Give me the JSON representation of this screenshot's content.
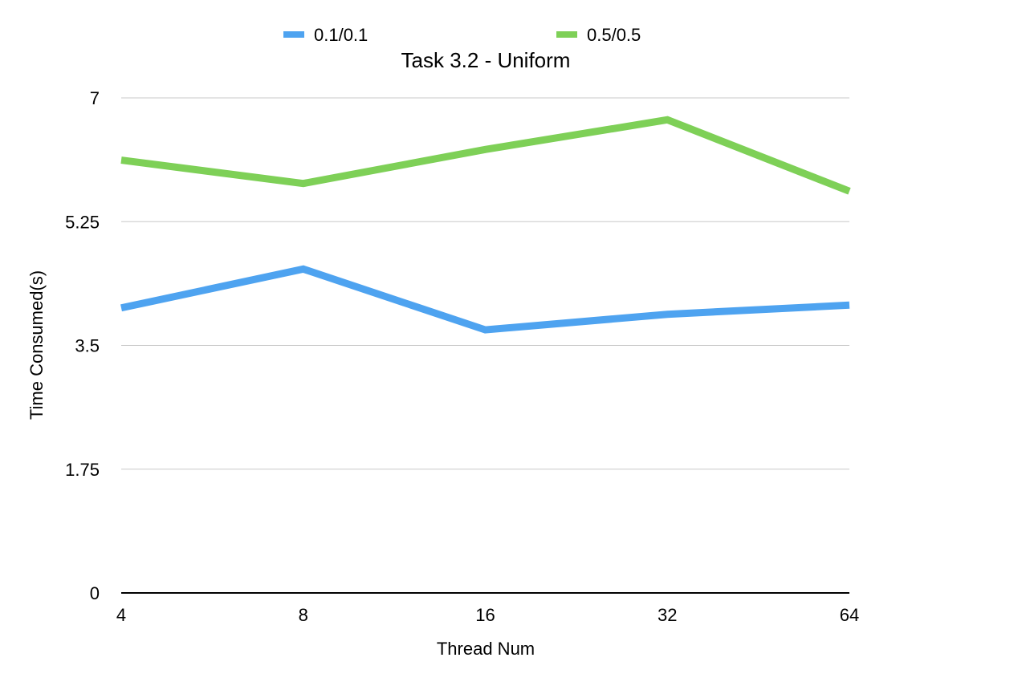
{
  "chart_data": {
    "type": "line",
    "title": "Task 3.2 - Uniform",
    "xlabel": "Thread Num",
    "ylabel": "Time Consumed(s)",
    "categories": [
      "4",
      "8",
      "16",
      "32",
      "64"
    ],
    "ylim": [
      0,
      7
    ],
    "yticks": [
      "0",
      "1.75",
      "3.5",
      "5.25",
      "7"
    ],
    "ytick_values": [
      0,
      1.75,
      3.5,
      5.25,
      7
    ],
    "grid": true,
    "legend_position": "top",
    "series": [
      {
        "name": "0.1/0.1",
        "color": "#4ea3f0",
        "values": [
          4.03,
          4.58,
          3.72,
          3.94,
          4.07
        ]
      },
      {
        "name": "0.5/0.5",
        "color": "#7ed057",
        "values": [
          6.12,
          5.79,
          6.27,
          6.69,
          5.68
        ]
      }
    ]
  }
}
